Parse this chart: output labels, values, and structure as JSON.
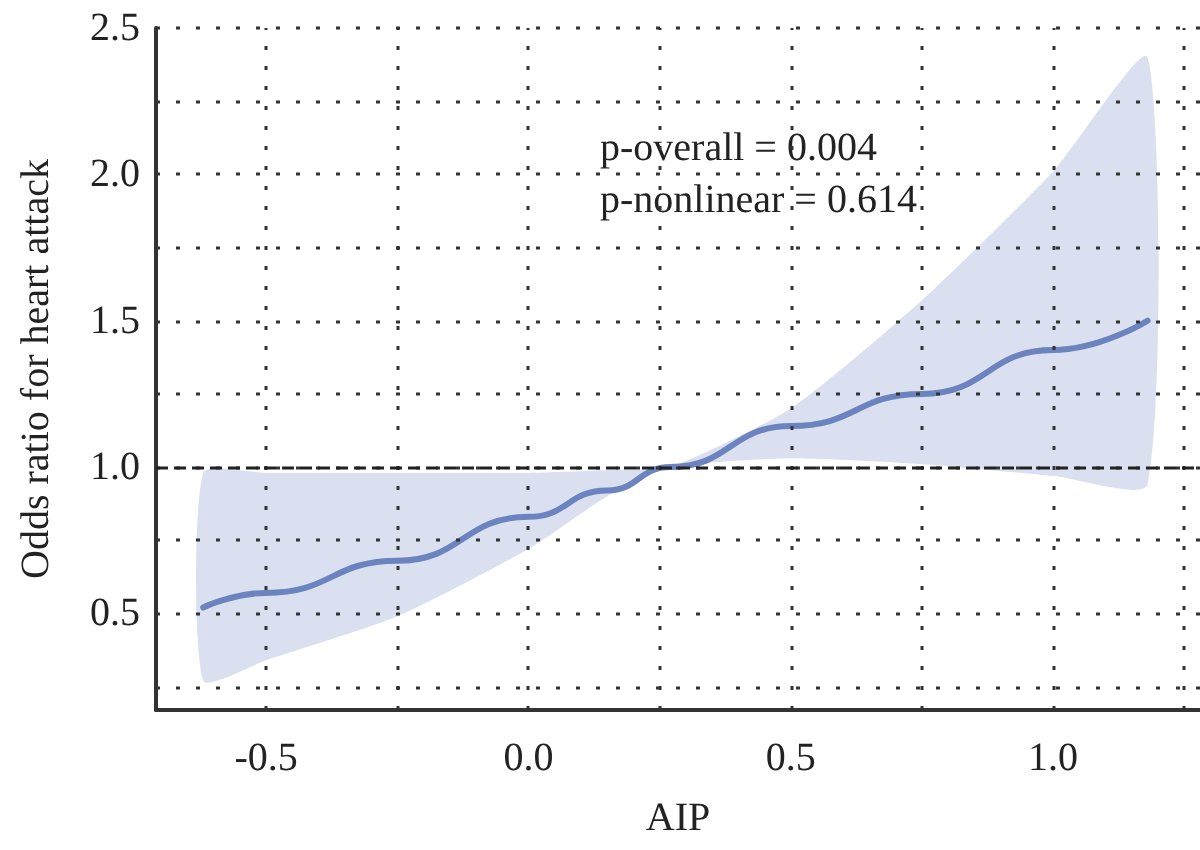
{
  "chart_data": {
    "type": "line",
    "xlabel": "AIP",
    "ylabel": "Odds ratio for heart attack",
    "annotations": [
      "p-overall = 0.004",
      "p-nonlinear = 0.614"
    ],
    "x": [
      -0.62,
      -0.5,
      -0.25,
      0,
      0.15,
      0.27,
      0.5,
      0.75,
      1.0,
      1.18
    ],
    "series": [
      {
        "color": "#6b84bf",
        "values": [
          0.52,
          0.57,
          0.68,
          0.83,
          0.92,
          1.0,
          1.14,
          1.25,
          1.4,
          1.5
        ],
        "lower": [
          0.27,
          0.34,
          0.49,
          0.72,
          0.9,
          1.0,
          1.03,
          1.01,
          0.97,
          0.94
        ],
        "upper": [
          0.98,
          0.98,
          0.98,
          0.98,
          0.99,
          1.0,
          1.2,
          1.57,
          2.01,
          2.4
        ]
      }
    ],
    "xlim": [
      -0.71,
      1.28
    ],
    "ylim": [
      0.17,
      2.5
    ],
    "xticks": [
      {
        "value": -0.5,
        "label": "-0.5"
      },
      {
        "value": -0.25,
        "label": null
      },
      {
        "value": 0,
        "label": "0.0"
      },
      {
        "value": 0.25,
        "label": null
      },
      {
        "value": 0.5,
        "label": "0.5"
      },
      {
        "value": 0.75,
        "label": null
      },
      {
        "value": 1.0,
        "label": "1.0"
      },
      {
        "value": 1.25,
        "label": null
      }
    ],
    "yticks": [
      {
        "value": 0.25,
        "label": null
      },
      {
        "value": 0.5,
        "label": "0.5"
      },
      {
        "value": 0.75,
        "label": null
      },
      {
        "value": 1.0,
        "label": "1.0"
      },
      {
        "value": 1.25,
        "label": null
      },
      {
        "value": 1.5,
        "label": "1.5"
      },
      {
        "value": 1.75,
        "label": null
      },
      {
        "value": 2.0,
        "label": "2.0"
      },
      {
        "value": 2.25,
        "label": null
      },
      {
        "value": 2.5,
        "label": "2.5"
      }
    ],
    "ref_lines": [
      {
        "axis": "y",
        "value": 1.0,
        "color": "#222222",
        "line_style": "dashed"
      }
    ],
    "grid": true,
    "marker": "none",
    "line_style": "solid"
  }
}
